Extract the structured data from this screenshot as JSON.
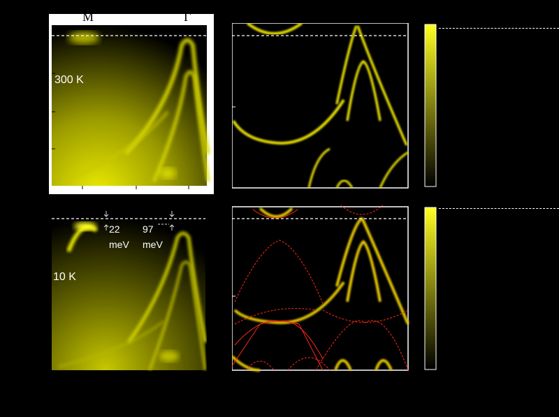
{
  "figure": {
    "panel_a": {
      "temperature_label": "300 K"
    },
    "panel_c": {
      "temperature_label": "10 K",
      "gap_left_value": "22",
      "gap_left_unit": "meV",
      "gap_right_value": "97",
      "gap_right_unit": "meV"
    },
    "top_k_labels": [
      "M",
      "Γ"
    ],
    "colors": {
      "intensity": "#e8e000",
      "background": "#000000",
      "fermi_line": "#ffffff",
      "dft_bands": "#ff2a1a"
    }
  }
}
